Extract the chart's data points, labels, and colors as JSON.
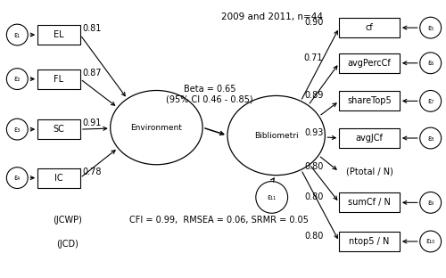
{
  "title": "2009 and 2011, n=44",
  "beta_text": "Beta = 0.65\n(95% CI 0.46 - 0.85)",
  "fit_text": "CFI = 0.99,  RMSEA = 0.06, SRMR = 0.05",
  "jcwp_text": "(JCWP)",
  "jcd_text": "(JCD)",
  "left_boxes": [
    "EL",
    "FL",
    "SC",
    "IC"
  ],
  "left_loadings": [
    "0.81",
    "0.87",
    "0.91",
    "0.78"
  ],
  "left_epsilons": [
    "ε₁",
    "ε₂",
    "ε₃",
    "ε₄"
  ],
  "right_items": [
    "cf",
    "avgPercCf",
    "shareTop5",
    "avgJCf",
    "(Ptotal / N)",
    "sumCf / N",
    "ntop5 / N"
  ],
  "right_loadings": [
    "0.90",
    "0.71",
    "0.89",
    "0.93",
    "0.80",
    "0.80",
    "0.80"
  ],
  "right_epsilons": [
    "ε₅",
    "ε₆",
    "ε₇",
    "ε₈",
    "",
    "ε₉",
    "ε₁₀"
  ],
  "right_has_box": [
    true,
    true,
    true,
    true,
    false,
    true,
    true
  ],
  "env_label": "Environment",
  "biblio_label": "Bibliometri",
  "zeta_label": "ε₁₁",
  "bg_color": "#ffffff",
  "box_edge": "#000000",
  "arrow_color": "#000000",
  "text_color": "#000000",
  "font_size": 7,
  "title_font_size": 7.5
}
